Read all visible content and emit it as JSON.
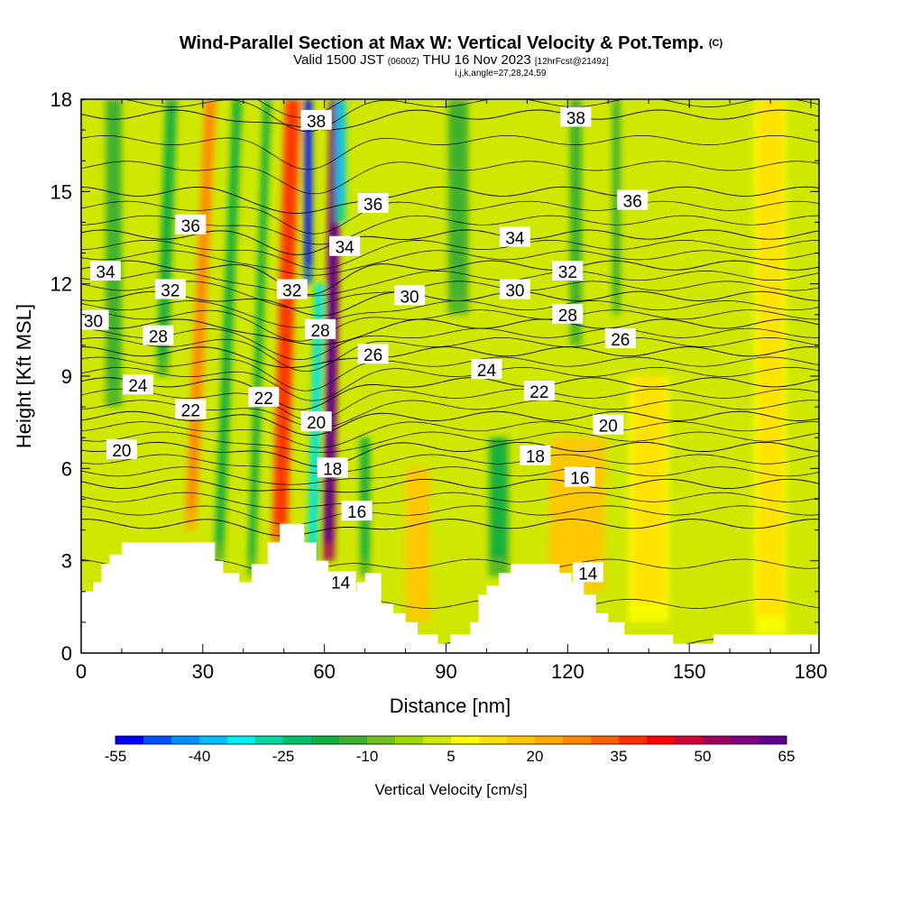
{
  "title": {
    "main": "Wind-Parallel Section at Max W: Vertical Velocity & Pot.Temp.",
    "copyright": "(C)",
    "valid_prefix": "Valid 1500 JST",
    "valid_utc": "(0600Z)",
    "valid_suffix": "THU 16 Nov 2023",
    "forecast": "[12hrFcst@2149z]",
    "indices": "i,j,k,angle=27,28,24,59"
  },
  "chart_data": {
    "type": "heatmap",
    "xlabel": "Distance [nm]",
    "ylabel": "Height [Kft MSL]",
    "xlim": [
      0,
      182
    ],
    "ylim": [
      0,
      18
    ],
    "xticks": [
      "0",
      "30",
      "60",
      "90",
      "120",
      "150",
      "180"
    ],
    "yticks": [
      "0",
      "3",
      "6",
      "9",
      "12",
      "15",
      "18"
    ],
    "colorbar": {
      "title": "Vertical Velocity [cm/s]",
      "range": [
        -55,
        65
      ],
      "step": 5,
      "tick_labels": [
        "-55",
        "-40",
        "-25",
        "-10",
        "5",
        "20",
        "35",
        "50",
        "65"
      ],
      "colors": [
        "#0000ff",
        "#0050ff",
        "#0090ff",
        "#00c0ff",
        "#00f0f0",
        "#00d8a0",
        "#00c070",
        "#10b040",
        "#40b030",
        "#70c020",
        "#a0d800",
        "#d0e800",
        "#ffff00",
        "#ffe000",
        "#ffc800",
        "#ffa800",
        "#ff8800",
        "#ff6000",
        "#ff3000",
        "#ff0000",
        "#d00030",
        "#a00060",
        "#800080",
        "#600090"
      ]
    },
    "terrain": [
      [
        0,
        2
      ],
      [
        3,
        2
      ],
      [
        3,
        2.3
      ],
      [
        5,
        2.3
      ],
      [
        5,
        2.9
      ],
      [
        7,
        2.9
      ],
      [
        7,
        3.2
      ],
      [
        10,
        3.2
      ],
      [
        10,
        3.6
      ],
      [
        33,
        3.6
      ],
      [
        33,
        3.0
      ],
      [
        35,
        3.0
      ],
      [
        35,
        2.6
      ],
      [
        39,
        2.6
      ],
      [
        39,
        2.3
      ],
      [
        42,
        2.3
      ],
      [
        42,
        2.9
      ],
      [
        46,
        2.9
      ],
      [
        46,
        3.6
      ],
      [
        49,
        3.6
      ],
      [
        49,
        4.2
      ],
      [
        55,
        4.2
      ],
      [
        55,
        3.6
      ],
      [
        58,
        3.6
      ],
      [
        58,
        3.0
      ],
      [
        61,
        3.0
      ],
      [
        61,
        2.0
      ],
      [
        68,
        2.0
      ],
      [
        68,
        2.3
      ],
      [
        70,
        2.3
      ],
      [
        70,
        2.6
      ],
      [
        74,
        2.6
      ],
      [
        74,
        1.6
      ],
      [
        77,
        1.6
      ],
      [
        77,
        1.3
      ],
      [
        80,
        1.3
      ],
      [
        80,
        1.0
      ],
      [
        83,
        1.0
      ],
      [
        83,
        0.6
      ],
      [
        88,
        0.6
      ],
      [
        88,
        0.3
      ],
      [
        91,
        0.3
      ],
      [
        91,
        0.6
      ],
      [
        96,
        0.6
      ],
      [
        96,
        1.0
      ],
      [
        98,
        1.0
      ],
      [
        98,
        1.9
      ],
      [
        100,
        1.9
      ],
      [
        100,
        2.2
      ],
      [
        103,
        2.2
      ],
      [
        103,
        2.6
      ],
      [
        106,
        2.6
      ],
      [
        106,
        2.9
      ],
      [
        118,
        2.9
      ],
      [
        118,
        2.6
      ],
      [
        121,
        2.6
      ],
      [
        121,
        2.3
      ],
      [
        124,
        2.3
      ],
      [
        124,
        1.9
      ],
      [
        127,
        1.9
      ],
      [
        127,
        1.3
      ],
      [
        130,
        1.3
      ],
      [
        130,
        1.0
      ],
      [
        134,
        1.0
      ],
      [
        134,
        0.6
      ],
      [
        146,
        0.6
      ],
      [
        146,
        0.3
      ],
      [
        156,
        0.3
      ],
      [
        156,
        0.6
      ],
      [
        182,
        0.6
      ]
    ],
    "updrafts": [
      {
        "x": 49,
        "top": 18,
        "bottom": 3.6,
        "width": 4.0,
        "value": 30,
        "tilt": 0.22
      },
      {
        "x": 61,
        "top": 18,
        "bottom": 3.0,
        "width": 3.0,
        "value": 50,
        "tilt": 0.12
      },
      {
        "x": 27,
        "top": 18,
        "bottom": 4.0,
        "width": 3.0,
        "value": 20,
        "tilt": 0.35
      },
      {
        "x": 122,
        "top": 7,
        "bottom": 2.0,
        "width": 14.0,
        "value": 15,
        "tilt": 0.1
      },
      {
        "x": 83,
        "top": 6,
        "bottom": 1.0,
        "width": 6.0,
        "value": 15,
        "tilt": 0.0
      },
      {
        "x": 170,
        "top": 18,
        "bottom": 0.6,
        "width": 8.0,
        "value": 8,
        "tilt": 0.0
      },
      {
        "x": 140,
        "top": 9,
        "bottom": 1.0,
        "width": 10.0,
        "value": 8,
        "tilt": 0.0
      }
    ],
    "downdrafts": [
      {
        "x": 56,
        "top": 18,
        "bottom": 12,
        "width": 2.0,
        "value": -50,
        "tilt": 0.0
      },
      {
        "x": 64,
        "top": 18,
        "bottom": 14,
        "width": 2.5,
        "value": -30,
        "tilt": 0.0
      },
      {
        "x": 57,
        "top": 12,
        "bottom": 3.0,
        "width": 2.5,
        "value": -25,
        "tilt": 0.2
      },
      {
        "x": 42,
        "top": 18,
        "bottom": 2.5,
        "width": 2.0,
        "value": -15,
        "tilt": 0.25
      },
      {
        "x": 34,
        "top": 18,
        "bottom": 3.0,
        "width": 2.5,
        "value": -15,
        "tilt": 0.3
      },
      {
        "x": 8,
        "top": 18,
        "bottom": 8,
        "width": 4.0,
        "value": -12,
        "tilt": 0.0
      },
      {
        "x": 20,
        "top": 18,
        "bottom": 9,
        "width": 3.0,
        "value": -15,
        "tilt": 0.25
      },
      {
        "x": 103,
        "top": 7,
        "bottom": 2.5,
        "width": 5.0,
        "value": -15,
        "tilt": 0.0
      },
      {
        "x": 93,
        "top": 18,
        "bottom": 11,
        "width": 5.0,
        "value": -12,
        "tilt": 0.0
      },
      {
        "x": 122,
        "top": 18,
        "bottom": 10,
        "width": 3.0,
        "value": -12,
        "tilt": 0.0
      },
      {
        "x": 132,
        "top": 18,
        "bottom": 11,
        "width": 2.0,
        "value": -12,
        "tilt": 0.0
      },
      {
        "x": 70,
        "top": 7,
        "bottom": 2.5,
        "width": 2.5,
        "value": -15,
        "tilt": 0.0
      }
    ],
    "theta_levels": [
      14,
      16,
      18,
      20,
      22,
      24,
      26,
      28,
      30,
      32,
      34,
      36,
      38
    ],
    "theta_profile": {
      "outer_heights": [
        0.3,
        4.2,
        5.5,
        6.7,
        7.7,
        8.8,
        9.8,
        10.7,
        11.6,
        12.6,
        13.6,
        15.0,
        17.5
      ],
      "bump_center": 56,
      "bump_width": 12,
      "bump_amplitude": -0.8
    },
    "contour_labels": [
      {
        "text": "38",
        "x": 58,
        "y": 17.3
      },
      {
        "text": "38",
        "x": 122,
        "y": 17.4
      },
      {
        "text": "36",
        "x": 72,
        "y": 14.6
      },
      {
        "text": "36",
        "x": 136,
        "y": 14.7
      },
      {
        "text": "36",
        "x": 27,
        "y": 13.9
      },
      {
        "text": "34",
        "x": 6,
        "y": 12.4
      },
      {
        "text": "34",
        "x": 65,
        "y": 13.2
      },
      {
        "text": "34",
        "x": 107,
        "y": 13.5
      },
      {
        "text": "32",
        "x": 22,
        "y": 11.8
      },
      {
        "text": "32",
        "x": 52,
        "y": 11.8
      },
      {
        "text": "32",
        "x": 120,
        "y": 12.4
      },
      {
        "text": "30",
        "x": 3,
        "y": 10.8
      },
      {
        "text": "30",
        "x": 81,
        "y": 11.6
      },
      {
        "text": "30",
        "x": 107,
        "y": 11.8
      },
      {
        "text": "28",
        "x": 19,
        "y": 10.3
      },
      {
        "text": "28",
        "x": 59,
        "y": 10.5
      },
      {
        "text": "28",
        "x": 120,
        "y": 11.0
      },
      {
        "text": "26",
        "x": 72,
        "y": 9.7
      },
      {
        "text": "26",
        "x": 133,
        "y": 10.2
      },
      {
        "text": "24",
        "x": 14,
        "y": 8.7
      },
      {
        "text": "24",
        "x": 100,
        "y": 9.2
      },
      {
        "text": "22",
        "x": 27,
        "y": 7.9
      },
      {
        "text": "22",
        "x": 45,
        "y": 8.3
      },
      {
        "text": "22",
        "x": 113,
        "y": 8.5
      },
      {
        "text": "20",
        "x": 58,
        "y": 7.5
      },
      {
        "text": "20",
        "x": 10,
        "y": 6.6
      },
      {
        "text": "20",
        "x": 130,
        "y": 7.4
      },
      {
        "text": "18",
        "x": 62,
        "y": 6.0
      },
      {
        "text": "18",
        "x": 112,
        "y": 6.4
      },
      {
        "text": "16",
        "x": 68,
        "y": 4.6
      },
      {
        "text": "16",
        "x": 123,
        "y": 5.7
      },
      {
        "text": "14",
        "x": 64,
        "y": 2.3
      },
      {
        "text": "14",
        "x": 125,
        "y": 2.6
      }
    ]
  }
}
